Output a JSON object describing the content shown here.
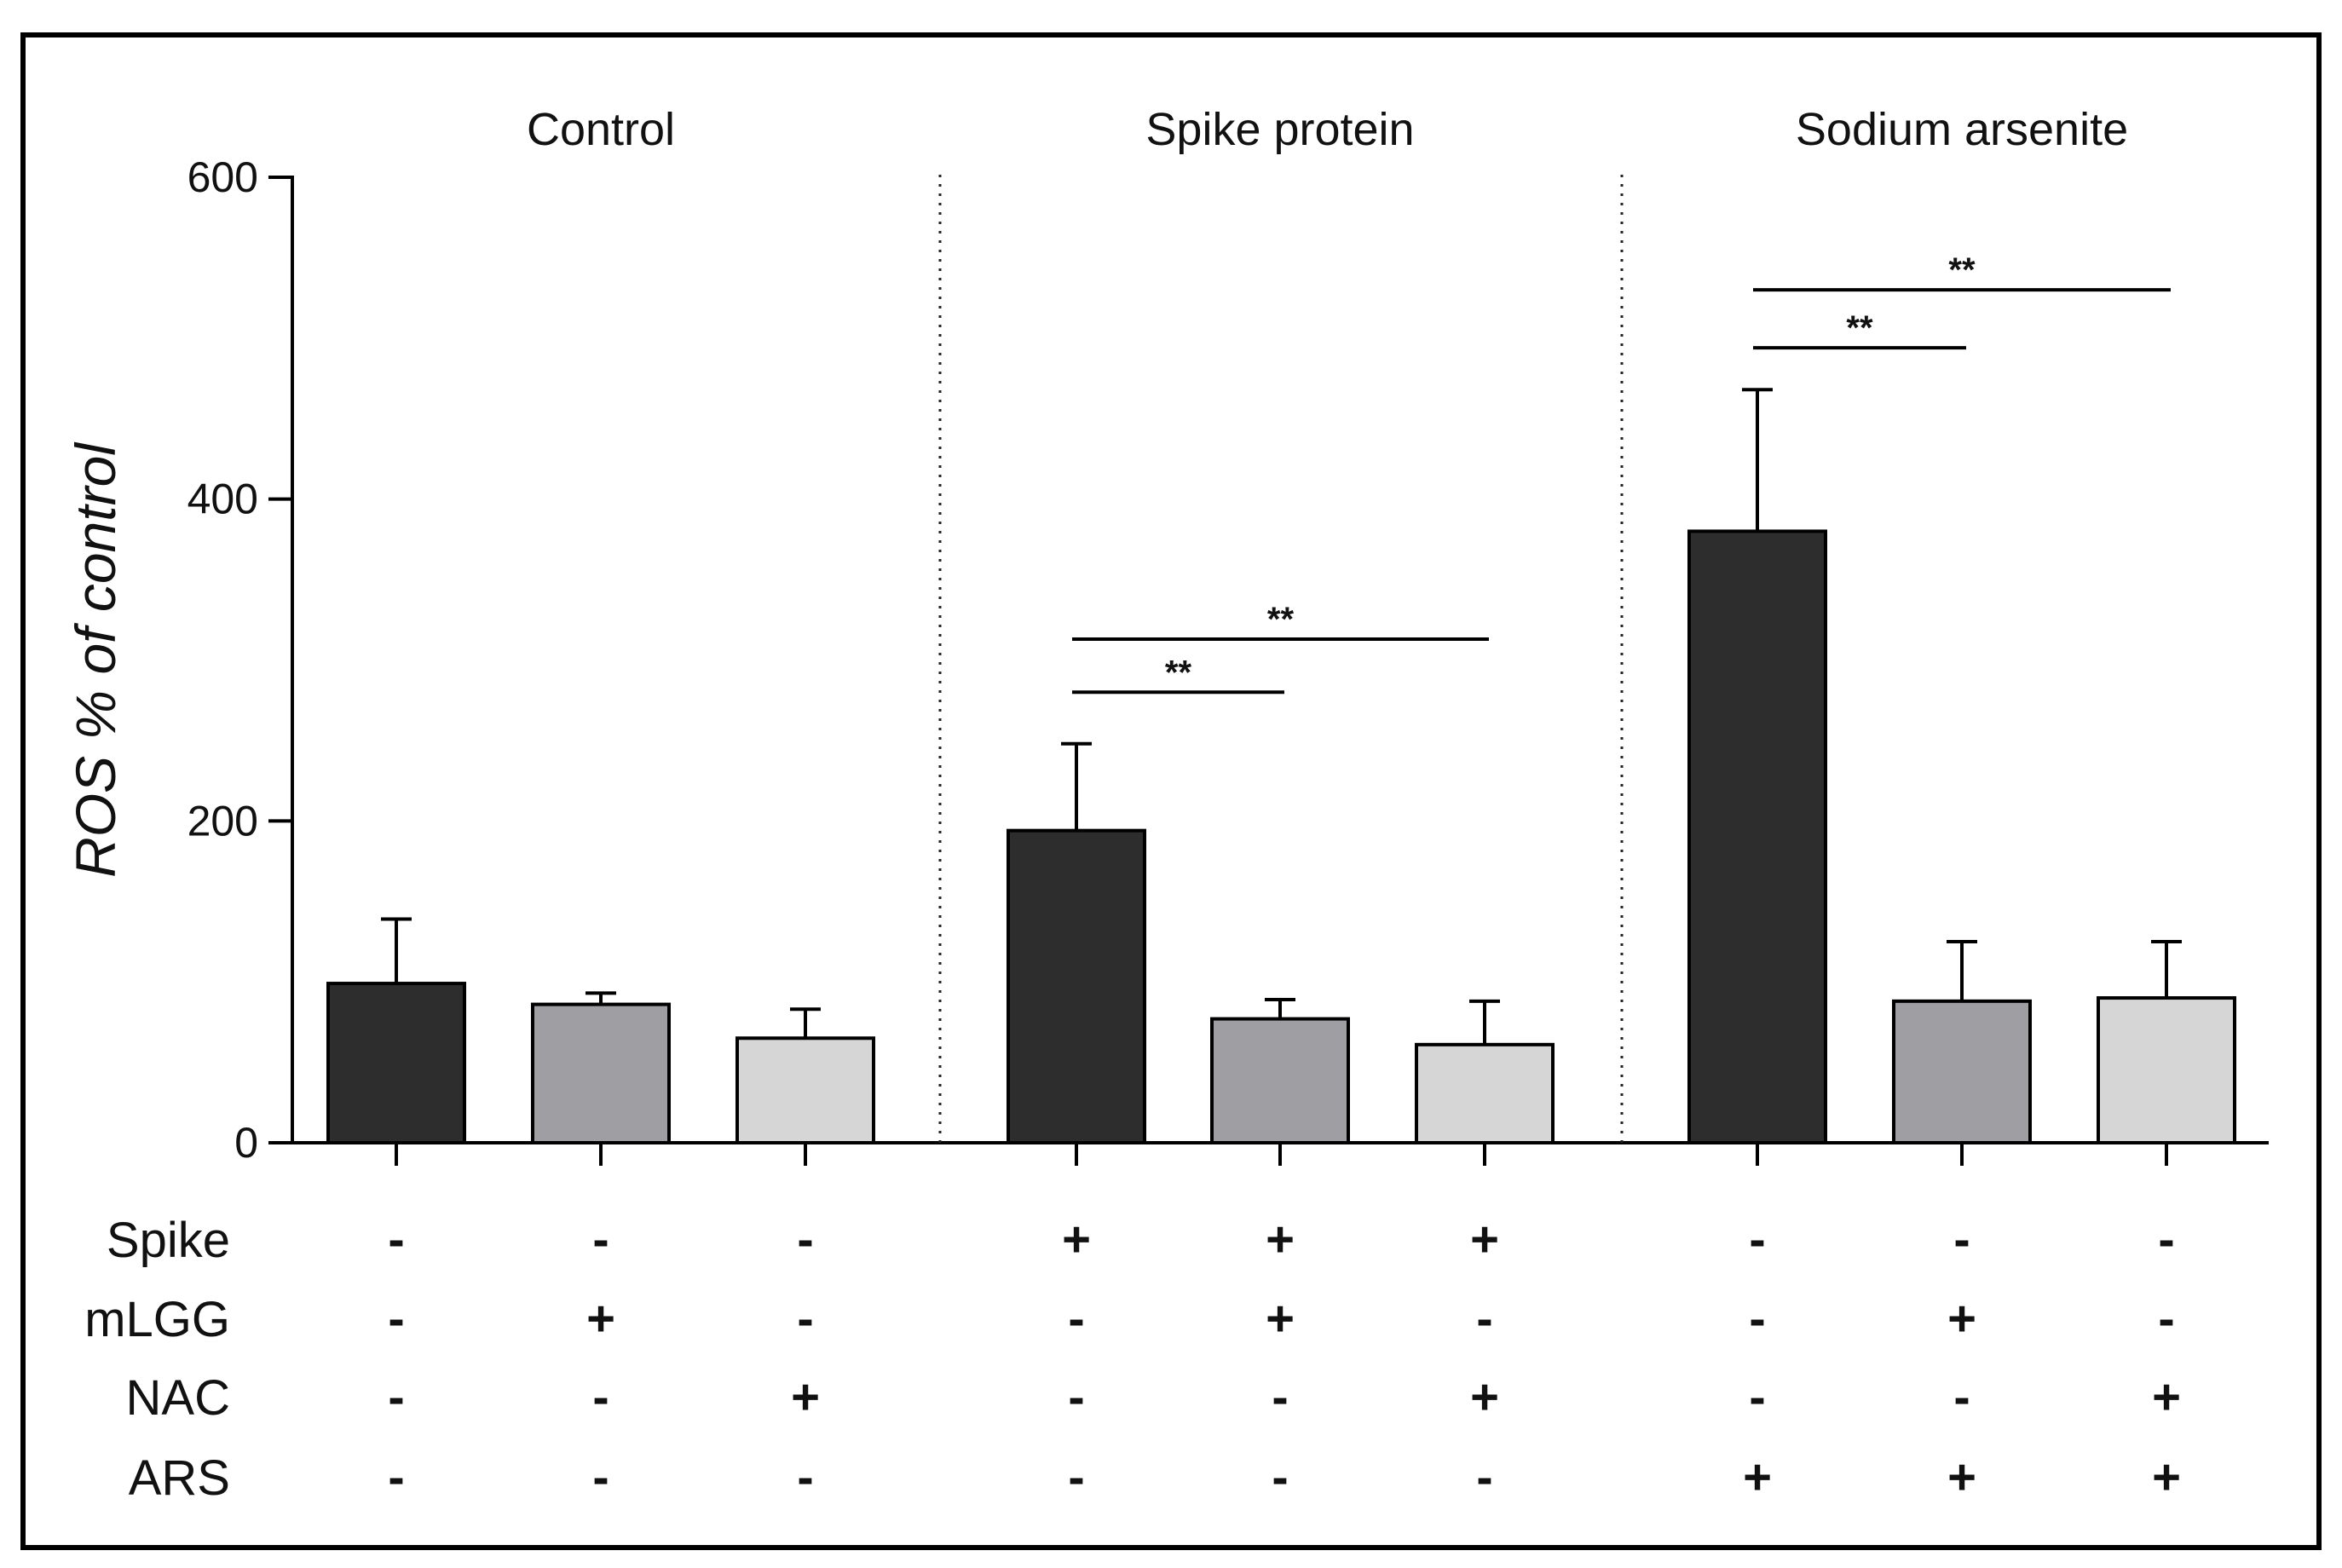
{
  "chart_data": {
    "type": "bar",
    "ylabel": "ROS % of control",
    "ylim": [
      0,
      600
    ],
    "yticks": [
      0,
      200,
      400,
      600
    ],
    "groups": [
      {
        "title": "Control",
        "bars": [
          0,
          1,
          2
        ]
      },
      {
        "title": "Spike protein",
        "bars": [
          3,
          4,
          5
        ]
      },
      {
        "title": "Sodium arsenite",
        "bars": [
          6,
          7,
          8
        ]
      }
    ],
    "bars": [
      {
        "group": "Control",
        "shade": "dark",
        "value": 99,
        "error": 40
      },
      {
        "group": "Control",
        "shade": "mid",
        "value": 86,
        "error": 7
      },
      {
        "group": "Control",
        "shade": "light",
        "value": 65,
        "error": 18
      },
      {
        "group": "Spike protein",
        "shade": "dark",
        "value": 194,
        "error": 54
      },
      {
        "group": "Spike protein",
        "shade": "mid",
        "value": 77,
        "error": 12
      },
      {
        "group": "Spike protein",
        "shade": "light",
        "value": 61,
        "error": 27
      },
      {
        "group": "Sodium arsenite",
        "shade": "dark",
        "value": 380,
        "error": 88
      },
      {
        "group": "Sodium arsenite",
        "shade": "mid",
        "value": 88,
        "error": 37
      },
      {
        "group": "Sodium arsenite",
        "shade": "light",
        "value": 90,
        "error": 35
      }
    ],
    "shade_colors": {
      "dark": "#2d2d2d",
      "mid": "#9f9ea3",
      "light": "#d6d6d6"
    },
    "significance": [
      {
        "from": 3,
        "to": 4,
        "y": 280,
        "label": "**"
      },
      {
        "from": 3,
        "to": 5,
        "y": 313,
        "label": "**"
      },
      {
        "from": 6,
        "to": 7,
        "y": 494,
        "label": "**"
      },
      {
        "from": 6,
        "to": 8,
        "y": 530,
        "label": "**"
      }
    ],
    "treatment_rows": [
      {
        "label": "Spike",
        "values": [
          "-",
          "-",
          "-",
          "+",
          "+",
          "+",
          "-",
          "-",
          "-"
        ]
      },
      {
        "label": "mLGG",
        "values": [
          "-",
          "+",
          "-",
          "-",
          "+",
          "-",
          "-",
          "+",
          "-"
        ]
      },
      {
        "label": "NAC",
        "values": [
          "-",
          "-",
          "+",
          "-",
          "-",
          "+",
          "-",
          "-",
          "+"
        ]
      },
      {
        "label": "ARS",
        "values": [
          "-",
          "-",
          "-",
          "-",
          "-",
          "-",
          "+",
          "+",
          "+"
        ]
      }
    ]
  }
}
